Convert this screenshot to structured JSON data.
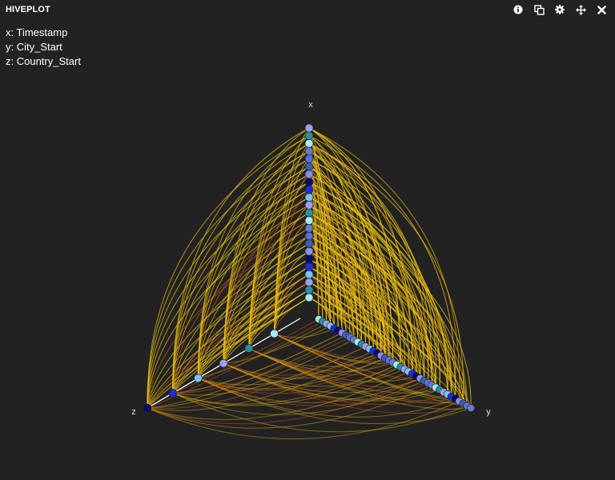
{
  "header": {
    "title": "HIVEPLOT"
  },
  "toolbar": [
    {
      "icon": "info-icon",
      "label": "Info"
    },
    {
      "icon": "copy-icon",
      "label": "Copy"
    },
    {
      "icon": "gear-icon",
      "label": "Settings"
    },
    {
      "icon": "move-icon",
      "label": "Move"
    },
    {
      "icon": "close-icon",
      "label": "Close"
    }
  ],
  "legend": {
    "x": "x: Timestamp",
    "y": "y: City_Start",
    "z": "z: Country_Start"
  },
  "chart_data": {
    "type": "hive",
    "axes": [
      {
        "name": "x",
        "label": "x",
        "field": "Timestamp",
        "node_count": 23
      },
      {
        "name": "y",
        "label": "y",
        "field": "City_Start",
        "node_count": 40
      },
      {
        "name": "z",
        "label": "z",
        "field": "Country_Start",
        "node_count": 6
      }
    ],
    "node_palette": [
      "#8b8fe8",
      "#7ec3f0",
      "#a9e8f5",
      "#3c5db0",
      "#1a2fd8",
      "#2a8fa0",
      "#5a6fd8",
      "#0a0a6a",
      "#9aa0f0",
      "#6080c8"
    ],
    "edge_colors": {
      "primary": "#f2c40f",
      "secondary": "#d4a214",
      "tertiary": "#c2541a"
    },
    "axis_color": "#ffffff"
  }
}
